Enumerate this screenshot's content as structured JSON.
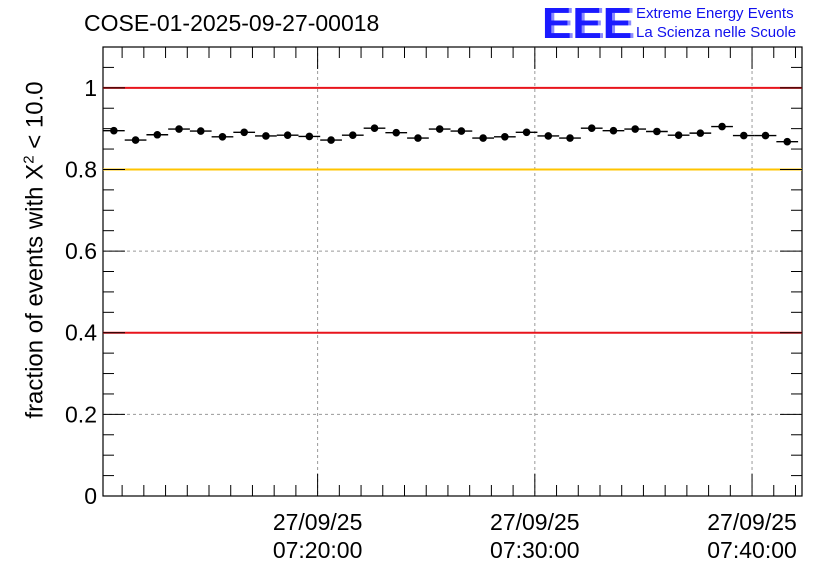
{
  "chart_data": {
    "type": "scatter",
    "title": "COSE-01-2025-09-27-00018",
    "ylabel": {
      "prefix": "fraction of events with ",
      "symbol": "X",
      "sup": "2",
      "suffix": " < 10.0"
    },
    "xlabel": "",
    "ylim": [
      0,
      1.1
    ],
    "yticks": [
      0,
      0.2,
      0.4,
      0.6,
      0.8,
      1
    ],
    "ytick_labels": [
      "0",
      "0.2",
      "0.4",
      "0.6",
      "0.8",
      "1"
    ],
    "x_unit": "minutes after 07:15:00",
    "xlim": [
      -4.88,
      27.3
    ],
    "xticks": [
      5,
      15,
      25
    ],
    "xtick_labels": [
      {
        "date": "27/09/25",
        "time": "07:20:00"
      },
      {
        "date": "27/09/25",
        "time": "07:30:00"
      },
      {
        "date": "27/09/25",
        "time": "07:40:00"
      }
    ],
    "grid": true,
    "reference_lines": [
      {
        "y": 1.0,
        "color": "#e8141c"
      },
      {
        "y": 0.8,
        "color": "#ffc400"
      },
      {
        "y": 0.4,
        "color": "#e8141c"
      }
    ],
    "series": [
      {
        "name": "fraction",
        "bin_width": 1.0,
        "x": [
          -4.38,
          -3.38,
          -2.38,
          -1.38,
          -0.38,
          0.62,
          1.62,
          2.62,
          3.62,
          4.62,
          5.62,
          6.62,
          7.62,
          8.62,
          9.62,
          10.62,
          11.62,
          12.62,
          13.62,
          14.62,
          15.62,
          16.62,
          17.62,
          18.62,
          19.62,
          20.62,
          21.62,
          22.62,
          23.62,
          24.62,
          25.62,
          26.62
        ],
        "y": [
          0.895,
          0.872,
          0.885,
          0.899,
          0.894,
          0.88,
          0.891,
          0.882,
          0.884,
          0.881,
          0.872,
          0.884,
          0.901,
          0.89,
          0.877,
          0.899,
          0.894,
          0.877,
          0.88,
          0.891,
          0.882,
          0.877,
          0.901,
          0.895,
          0.899,
          0.893,
          0.884,
          0.889,
          0.905,
          0.883,
          0.883,
          0.868
        ],
        "yerr": 0.006
      }
    ]
  },
  "logo": {
    "mark": "EEE",
    "line1": "Extreme Energy Events",
    "line2": "La Scienza nelle Scuole",
    "color": "#1010ee"
  }
}
